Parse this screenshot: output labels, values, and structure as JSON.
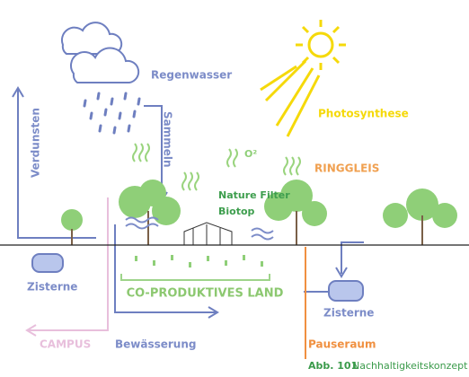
{
  "labels": {
    "rain": "Regenwasser",
    "collect": "Sammeln",
    "evaporate": "Verdunsten",
    "photosynthesis": "Photosynthese",
    "oxygen": "O²",
    "ringgleis": "RINGGLEIS",
    "nature_filter": "Nature Filter",
    "biotop": "Biotop",
    "cistern_left": "Zisterne",
    "land": "CO-PRODUKTIVES LAND",
    "cistern_right": "Zisterne",
    "campus": "CAMPUS",
    "irrigation": "Bewässerung",
    "break_room": "Pauseraum"
  },
  "caption": {
    "number": "Abb. 101",
    "text": "Nachhaltigkeitskonzept"
  }
}
